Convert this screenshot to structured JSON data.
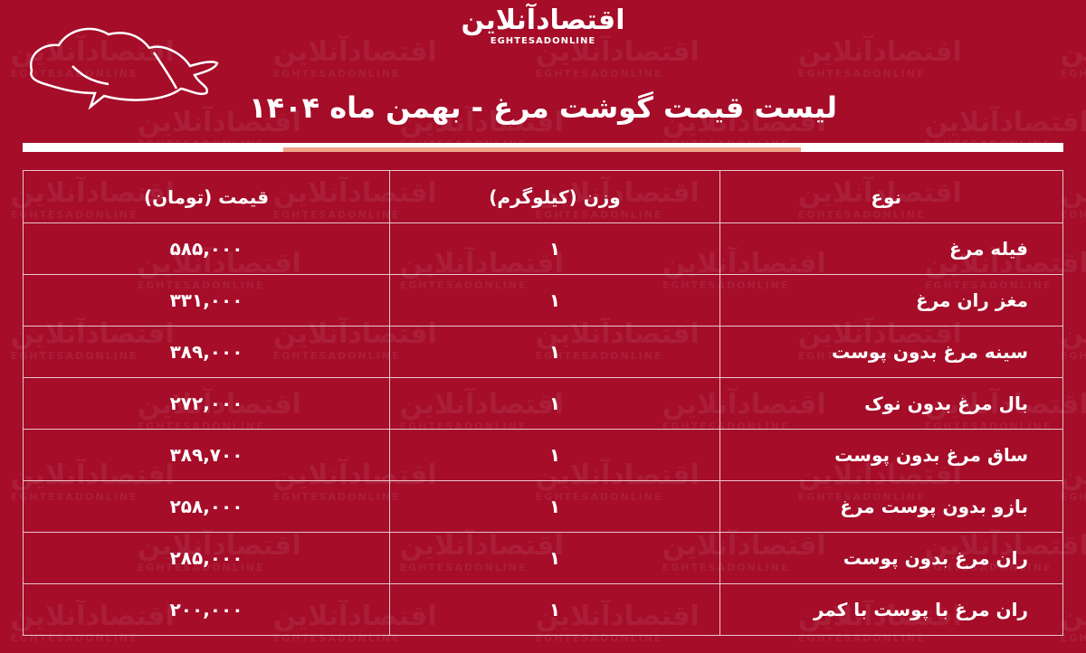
{
  "brand": {
    "logo_fa": "اقتصادآنلاین",
    "logo_en": "EGHTESADONLINE"
  },
  "title": "لیست قیمت گوشت مرغ - بهمن ماه ۱۴۰۴",
  "colors": {
    "background": "#a50d29",
    "accent": "#f0a58a",
    "text": "#ffffff"
  },
  "table": {
    "headers": {
      "type": "نوع",
      "weight": "وزن (کیلوگرم)",
      "price": "قیمت (تومان)"
    },
    "rows": [
      {
        "type": "فیله مرغ",
        "weight": "۱",
        "price": "۵۸۵,۰۰۰"
      },
      {
        "type": "مغز ران مرغ",
        "weight": "۱",
        "price": "۳۳۱,۰۰۰"
      },
      {
        "type": "سینه مرغ بدون پوست",
        "weight": "۱",
        "price": "۳۸۹,۰۰۰"
      },
      {
        "type": "بال مرغ بدون نوک",
        "weight": "۱",
        "price": "۲۷۲,۰۰۰"
      },
      {
        "type": "ساق  مرغ بدون پوست",
        "weight": "۱",
        "price": "۳۸۹,۷۰۰"
      },
      {
        "type": "بازو بدون پوست مرغ",
        "weight": "۱",
        "price": "۲۵۸,۰۰۰"
      },
      {
        "type": "ران مرغ بدون پوست",
        "weight": "۱",
        "price": "۲۸۵,۰۰۰"
      },
      {
        "type": "ران مرغ با پوست با کمر",
        "weight": "۱",
        "price": "۲۰۰,۰۰۰"
      }
    ]
  }
}
